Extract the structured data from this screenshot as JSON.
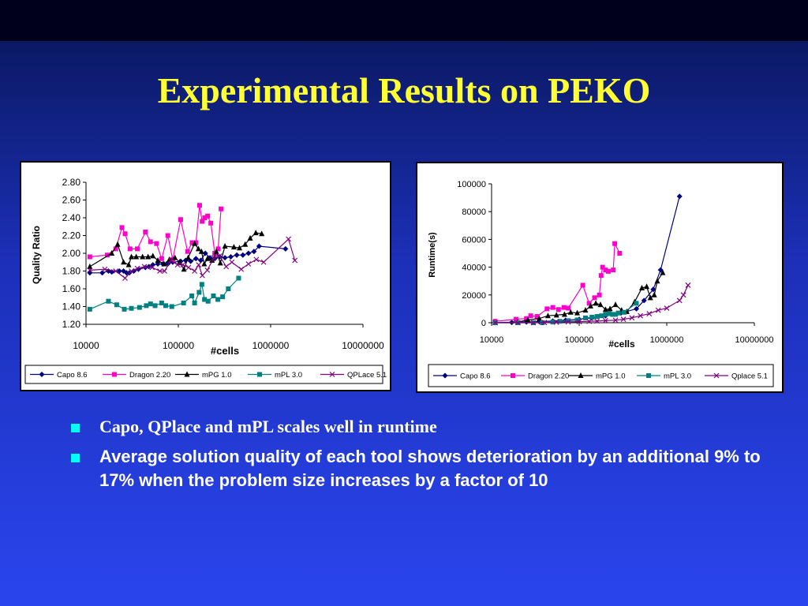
{
  "slide": {
    "title": "Experimental Results on PEKO",
    "bullets": [
      "Capo, QPlace and mPL scales well in runtime",
      "Average solution quality of each tool shows deterioration by an additional 9% to 17% when the problem size increases by a factor of 10"
    ]
  },
  "chart_data": [
    {
      "type": "line",
      "title": "",
      "xlabel": "#cells",
      "ylabel": "Quality Ratio",
      "x_scale": "log",
      "xlim": [
        10000,
        10000000
      ],
      "ylim": [
        1.2,
        2.8
      ],
      "xticks": [
        "10000",
        "100000",
        "1000000",
        "10000000"
      ],
      "yticks": [
        "1.20",
        "1.40",
        "1.60",
        "1.80",
        "2.00",
        "2.20",
        "2.40",
        "2.60",
        "2.80"
      ],
      "grid": false,
      "legend": "bottom",
      "series": [
        {
          "name": "Capo 8.6",
          "color": "#000080",
          "marker": "diamond",
          "points": [
            [
              11000,
              1.78
            ],
            [
              15000,
              1.78
            ],
            [
              17500,
              1.8
            ],
            [
              19000,
              1.79
            ],
            [
              23000,
              1.8
            ],
            [
              25500,
              1.8
            ],
            [
              27500,
              1.78
            ],
            [
              29500,
              1.78
            ],
            [
              33000,
              1.8
            ],
            [
              37000,
              1.82
            ],
            [
              44000,
              1.84
            ],
            [
              48000,
              1.85
            ],
            [
              53000,
              1.87
            ],
            [
              60000,
              1.88
            ],
            [
              68000,
              1.88
            ],
            [
              77000,
              1.88
            ],
            [
              87000,
              1.9
            ],
            [
              106000,
              1.91
            ],
            [
              120000,
              1.92
            ],
            [
              136000,
              1.91
            ],
            [
              155000,
              1.94
            ],
            [
              175000,
              1.92
            ],
            [
              196000,
              2.0
            ],
            [
              220000,
              1.95
            ],
            [
              248000,
              1.94
            ],
            [
              280000,
              1.96
            ],
            [
              320000,
              1.95
            ],
            [
              370000,
              1.96
            ],
            [
              430000,
              1.98
            ],
            [
              500000,
              1.98
            ],
            [
              575000,
              2.0
            ],
            [
              660000,
              2.02
            ],
            [
              750000,
              2.08
            ],
            [
              1450000,
              2.05
            ]
          ]
        },
        {
          "name": "Dragon 2.20",
          "color": "#ff00cc",
          "marker": "square",
          "points": [
            [
              11000,
              1.96
            ],
            [
              17000,
              1.98
            ],
            [
              21000,
              2.05
            ],
            [
              24500,
              2.29
            ],
            [
              26500,
              2.22
            ],
            [
              30000,
              2.05
            ],
            [
              36000,
              2.05
            ],
            [
              44000,
              2.24
            ],
            [
              50000,
              2.13
            ],
            [
              58000,
              2.11
            ],
            [
              66000,
              1.94
            ],
            [
              77000,
              2.2
            ],
            [
              87000,
              1.93
            ],
            [
              106000,
              2.38
            ],
            [
              126000,
              2.02
            ],
            [
              141000,
              2.12
            ],
            [
              155000,
              2.12
            ],
            [
              170000,
              2.54
            ],
            [
              181000,
              2.36
            ],
            [
              193000,
              2.4
            ],
            [
              208000,
              2.42
            ],
            [
              225000,
              2.34
            ],
            [
              248000,
              2.0
            ],
            [
              270000,
              2.05
            ],
            [
              290000,
              2.5
            ]
          ]
        },
        {
          "name": "mPG 1.0",
          "color": "#000000",
          "marker": "triangle",
          "points": [
            [
              11000,
              1.85
            ],
            [
              19000,
              2.0
            ],
            [
              22000,
              2.1
            ],
            [
              25500,
              1.9
            ],
            [
              29000,
              1.87
            ],
            [
              31000,
              1.96
            ],
            [
              35000,
              1.96
            ],
            [
              41000,
              1.96
            ],
            [
              47000,
              1.96
            ],
            [
              53000,
              1.97
            ],
            [
              60000,
              1.92
            ],
            [
              70000,
              1.88
            ],
            [
              80000,
              1.93
            ],
            [
              92000,
              1.95
            ],
            [
              103000,
              1.9
            ],
            [
              115000,
              1.82
            ],
            [
              128000,
              1.95
            ],
            [
              150000,
              2.11
            ],
            [
              165000,
              2.05
            ],
            [
              178000,
              2.02
            ],
            [
              191000,
              1.88
            ],
            [
              207000,
              1.94
            ],
            [
              232000,
              1.92
            ],
            [
              258000,
              2.02
            ],
            [
              285000,
              1.89
            ],
            [
              320000,
              2.08
            ],
            [
              400000,
              2.07
            ],
            [
              460000,
              2.06
            ],
            [
              530000,
              2.1
            ],
            [
              600000,
              2.17
            ],
            [
              690000,
              2.23
            ],
            [
              800000,
              2.22
            ]
          ]
        },
        {
          "name": "mPL 3.0",
          "color": "#008080",
          "marker": "square",
          "points": [
            [
              11000,
              1.37
            ],
            [
              17500,
              1.46
            ],
            [
              21500,
              1.42
            ],
            [
              26000,
              1.37
            ],
            [
              31000,
              1.38
            ],
            [
              38000,
              1.39
            ],
            [
              45000,
              1.41
            ],
            [
              50000,
              1.43
            ],
            [
              56000,
              1.41
            ],
            [
              66000,
              1.44
            ],
            [
              73000,
              1.41
            ],
            [
              85000,
              1.4
            ],
            [
              114000,
              1.44
            ],
            [
              140000,
              1.52
            ],
            [
              150000,
              1.44
            ],
            [
              168000,
              1.56
            ],
            [
              180000,
              1.65
            ],
            [
              192000,
              1.48
            ],
            [
              210000,
              1.46
            ],
            [
              240000,
              1.52
            ],
            [
              268000,
              1.48
            ],
            [
              302000,
              1.51
            ],
            [
              348000,
              1.6
            ],
            [
              450000,
              1.72
            ]
          ]
        },
        {
          "name": "QPLace 5.1",
          "color": "#800080",
          "marker": "x",
          "points": [
            [
              11000,
              1.81
            ],
            [
              16000,
              1.82
            ],
            [
              21000,
              1.8
            ],
            [
              26500,
              1.72
            ],
            [
              31000,
              1.8
            ],
            [
              36000,
              1.83
            ],
            [
              43000,
              1.85
            ],
            [
              52000,
              1.84
            ],
            [
              63000,
              1.8
            ],
            [
              71000,
              1.8
            ],
            [
              83000,
              1.92
            ],
            [
              98000,
              1.87
            ],
            [
              112000,
              1.87
            ],
            [
              129000,
              1.84
            ],
            [
              150000,
              1.8
            ],
            [
              166000,
              1.87
            ],
            [
              182000,
              1.75
            ],
            [
              206000,
              1.81
            ],
            [
              243000,
              1.95
            ],
            [
              280000,
              1.97
            ],
            [
              330000,
              1.85
            ],
            [
              380000,
              1.9
            ],
            [
              480000,
              1.82
            ],
            [
              575000,
              1.88
            ],
            [
              700000,
              1.93
            ],
            [
              840000,
              1.9
            ],
            [
              1560000,
              2.16
            ],
            [
              1830000,
              1.92
            ]
          ]
        }
      ]
    },
    {
      "type": "line",
      "title": "",
      "xlabel": "#cells",
      "ylabel": "Runtime(s)",
      "x_scale": "log",
      "xlim": [
        10000,
        10000000
      ],
      "ylim": [
        0,
        100000
      ],
      "xticks": [
        "10000",
        "100000",
        "1000000",
        "10000000"
      ],
      "yticks": [
        "0",
        "20000",
        "40000",
        "60000",
        "80000",
        "100000"
      ],
      "grid": false,
      "legend": "bottom",
      "series": [
        {
          "name": "Capo 8.6",
          "color": "#000080",
          "marker": "diamond",
          "points": [
            [
              11000,
              0
            ],
            [
              17000,
              200
            ],
            [
              25000,
              500
            ],
            [
              35000,
              800
            ],
            [
              50000,
              1200
            ],
            [
              70000,
              1800
            ],
            [
              100000,
              2500
            ],
            [
              140000,
              3500
            ],
            [
              200000,
              5000
            ],
            [
              300000,
              7000
            ],
            [
              450000,
              10000
            ],
            [
              550000,
              16000
            ],
            [
              700000,
              24000
            ],
            [
              850000,
              38000
            ],
            [
              1400000,
              91000
            ]
          ]
        },
        {
          "name": "Dragon 2.20",
          "color": "#ff00cc",
          "marker": "square",
          "points": [
            [
              11000,
              1000
            ],
            [
              19000,
              2500
            ],
            [
              25000,
              3000
            ],
            [
              28000,
              5000
            ],
            [
              33000,
              4500
            ],
            [
              43000,
              10000
            ],
            [
              50000,
              11000
            ],
            [
              58000,
              9500
            ],
            [
              67000,
              11000
            ],
            [
              75000,
              10500
            ],
            [
              110000,
              27000
            ],
            [
              130000,
              14000
            ],
            [
              150000,
              18000
            ],
            [
              170000,
              20000
            ],
            [
              178000,
              34000
            ],
            [
              185000,
              40000
            ],
            [
              200000,
              38000
            ],
            [
              215000,
              37000
            ],
            [
              245000,
              38000
            ],
            [
              255000,
              57000
            ],
            [
              290000,
              50000
            ]
          ]
        },
        {
          "name": "mPG 1.0",
          "color": "#000000",
          "marker": "triangle",
          "points": [
            [
              11000,
              0
            ],
            [
              20000,
              500
            ],
            [
              26000,
              2000
            ],
            [
              35000,
              3000
            ],
            [
              44000,
              5000
            ],
            [
              55000,
              5500
            ],
            [
              68000,
              6000
            ],
            [
              80000,
              7500
            ],
            [
              95000,
              7000
            ],
            [
              118000,
              9000
            ],
            [
              135000,
              12000
            ],
            [
              155000,
              14000
            ],
            [
              175000,
              13000
            ],
            [
              200000,
              9500
            ],
            [
              225000,
              10000
            ],
            [
              260000,
              13000
            ],
            [
              305000,
              9000
            ],
            [
              350000,
              8000
            ],
            [
              430000,
              15000
            ],
            [
              520000,
              25000
            ],
            [
              590000,
              26000
            ],
            [
              650000,
              18000
            ],
            [
              720000,
              20000
            ],
            [
              780000,
              30000
            ],
            [
              900000,
              36000
            ]
          ]
        },
        {
          "name": "mPL 3.0",
          "color": "#008080",
          "marker": "square",
          "points": [
            [
              11000,
              0
            ],
            [
              20000,
              0
            ],
            [
              30000,
              0
            ],
            [
              38000,
              0
            ],
            [
              50000,
              500
            ],
            [
              60000,
              1000
            ],
            [
              75000,
              1500
            ],
            [
              95000,
              2000
            ],
            [
              118000,
              3500
            ],
            [
              140000,
              4000
            ],
            [
              160000,
              4500
            ],
            [
              180000,
              5000
            ],
            [
              200000,
              6000
            ],
            [
              220000,
              6500
            ],
            [
              240000,
              6000
            ],
            [
              260000,
              6000
            ],
            [
              280000,
              7000
            ],
            [
              325000,
              7500
            ],
            [
              450000,
              14000
            ]
          ]
        },
        {
          "name": "Qplace 5.1",
          "color": "#800080",
          "marker": "x",
          "points": [
            [
              11000,
              0
            ],
            [
              20000,
              0
            ],
            [
              30000,
              0
            ],
            [
              40000,
              200
            ],
            [
              55000,
              400
            ],
            [
              75000,
              600
            ],
            [
              100000,
              800
            ],
            [
              130000,
              1000
            ],
            [
              160000,
              1200
            ],
            [
              200000,
              1500
            ],
            [
              260000,
              1800
            ],
            [
              320000,
              2500
            ],
            [
              400000,
              3500
            ],
            [
              500000,
              5000
            ],
            [
              630000,
              6500
            ],
            [
              800000,
              9000
            ],
            [
              1000000,
              10500
            ],
            [
              1400000,
              16000
            ],
            [
              1550000,
              20000
            ],
            [
              1750000,
              27000
            ]
          ]
        }
      ]
    }
  ]
}
